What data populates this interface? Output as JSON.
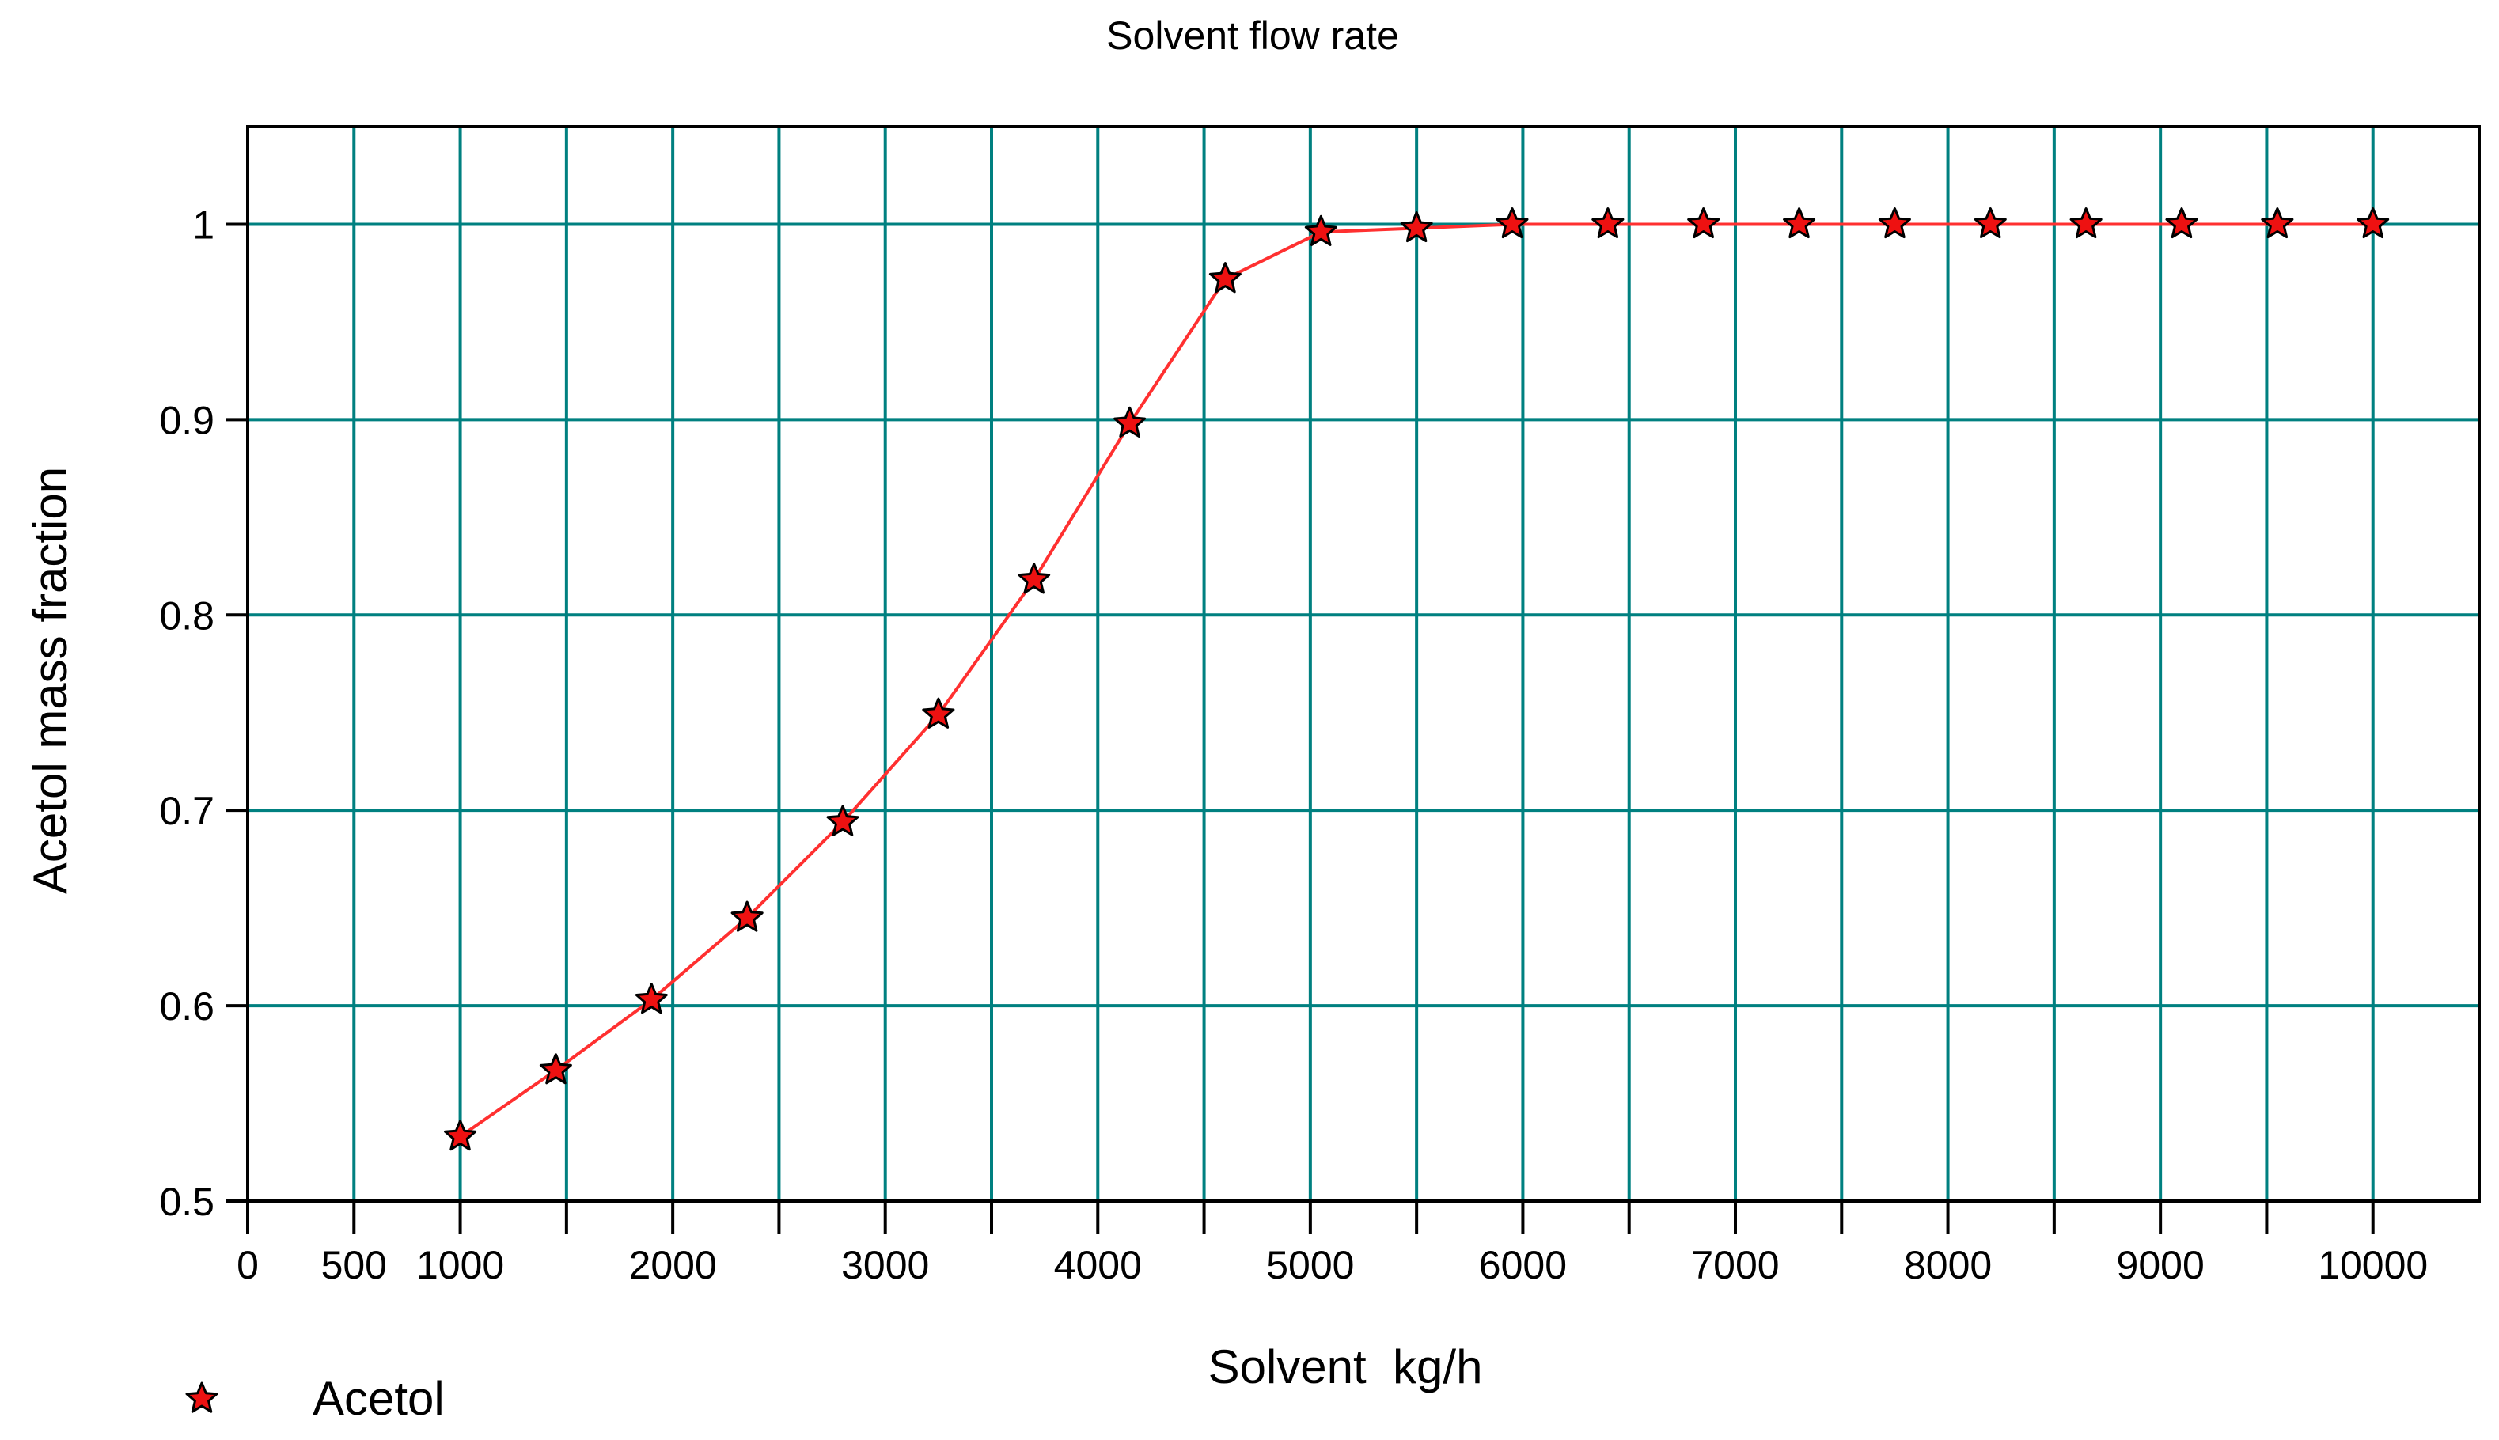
{
  "chart_data": {
    "type": "line",
    "title": "Solvent flow rate",
    "xlabel": "Solvent  kg/h",
    "ylabel": "Acetol mass fraction",
    "xlim": [
      0,
      10500
    ],
    "ylim": [
      0.5,
      1.05
    ],
    "x_ticks": [
      0,
      500,
      1000,
      2000,
      3000,
      4000,
      5000,
      6000,
      7000,
      8000,
      9000,
      10000
    ],
    "x_tick_labels": [
      "0",
      "500",
      "1000",
      "2000",
      "3000",
      "4000",
      "5000",
      "6000",
      "7000",
      "8000",
      "9000",
      "10000"
    ],
    "x_gridlines": [
      500,
      1000,
      1500,
      2000,
      2500,
      3000,
      3500,
      4000,
      4500,
      5000,
      5500,
      6000,
      6500,
      7000,
      7500,
      8000,
      8500,
      9000,
      9500,
      10000
    ],
    "y_ticks": [
      0.5,
      0.6,
      0.7,
      0.8,
      0.9,
      1.0
    ],
    "y_tick_labels": [
      "0.5",
      "0.6",
      "0.7",
      "0.8",
      "0.9",
      "1"
    ],
    "grid": true,
    "grid_color": "#008080",
    "line_color": "#ff3030",
    "marker_color": "#ee1111",
    "legend_position": "bottom-left",
    "series": [
      {
        "name": "Acetol",
        "marker": "star",
        "x": [
          1000,
          1450,
          1900,
          2350,
          2800,
          3250,
          3700,
          4150,
          4600,
          5050,
          5500,
          5950,
          6400,
          6850,
          7300,
          7750,
          8200,
          8650,
          9100,
          9550,
          10000
        ],
        "y": [
          0.533,
          0.567,
          0.603,
          0.645,
          0.694,
          0.749,
          0.818,
          0.898,
          0.972,
          0.996,
          0.998,
          1.0,
          1.0,
          1.0,
          1.0,
          1.0,
          1.0,
          1.0,
          1.0,
          1.0,
          1.0
        ]
      }
    ]
  }
}
